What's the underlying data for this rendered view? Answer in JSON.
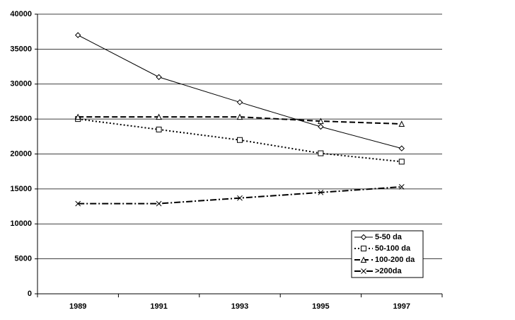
{
  "chart_data": {
    "type": "line",
    "categories": [
      "1989",
      "1991",
      "1993",
      "1995",
      "1997"
    ],
    "series": [
      {
        "name": "5-50 da",
        "color": "#000000",
        "dash": "solid",
        "marker": "diamond",
        "values": [
          37000,
          31000,
          27400,
          23900,
          20800
        ]
      },
      {
        "name": "50-100 da",
        "color": "#000000",
        "dash": "dot",
        "marker": "square",
        "values": [
          25000,
          23500,
          22000,
          20100,
          18900
        ]
      },
      {
        "name": "100-200 da",
        "color": "#000000",
        "dash": "dash",
        "marker": "triangle",
        "values": [
          25300,
          25300,
          25300,
          24700,
          24300
        ]
      },
      {
        "name": ">200da",
        "color": "#000000",
        "dash": "dashdot",
        "marker": "x",
        "values": [
          12900,
          12900,
          13700,
          14500,
          15300
        ]
      }
    ],
    "ylim": [
      0,
      40000
    ],
    "yticks": [
      0,
      5000,
      10000,
      15000,
      20000,
      25000,
      30000,
      35000,
      40000
    ],
    "grid": true,
    "legend": "lower-right"
  }
}
